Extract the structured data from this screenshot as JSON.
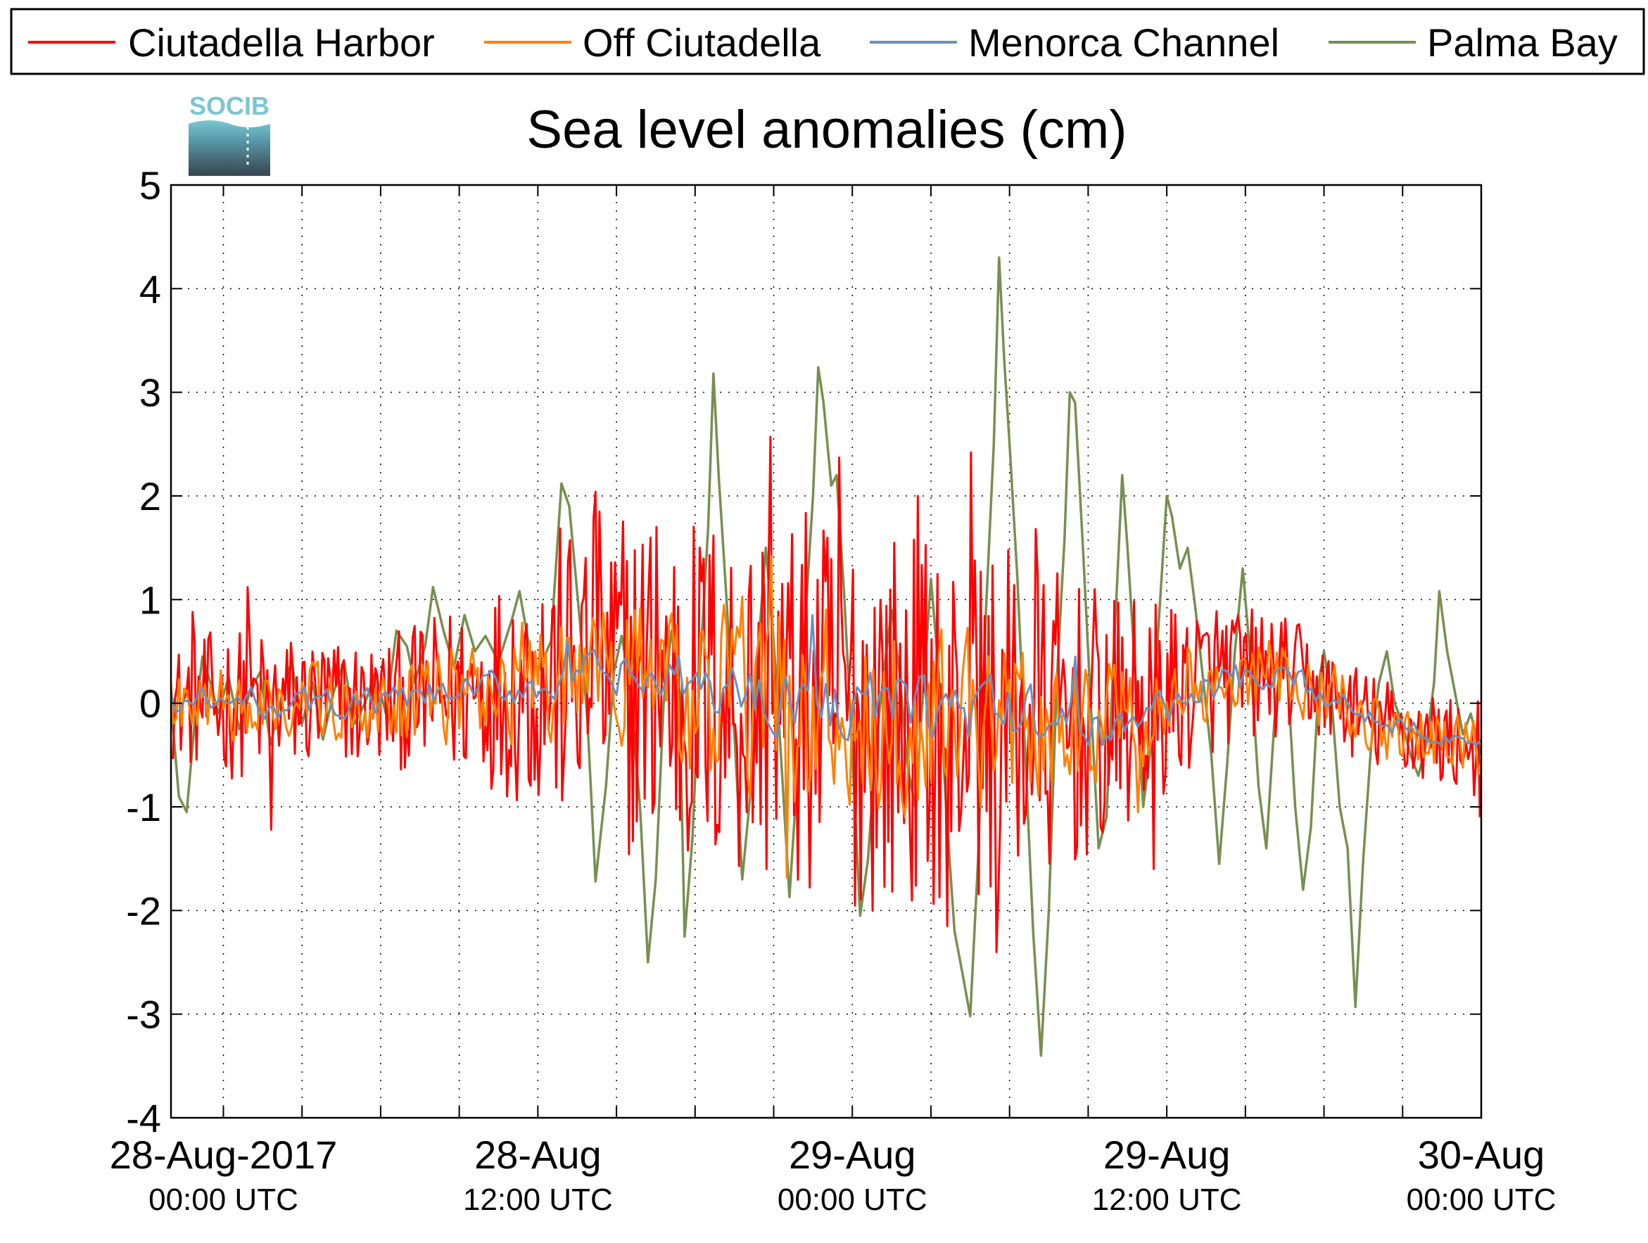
{
  "chart_data": {
    "type": "line",
    "title": "Sea level anomalies (cm)",
    "logo": "SOCIB",
    "ylim": [
      -4,
      5
    ],
    "yticks": [
      -4,
      -3,
      -2,
      -1,
      0,
      1,
      2,
      3,
      4,
      5
    ],
    "ytick_labels": [
      "-4",
      "-3",
      "-2",
      "-1",
      "0",
      "1",
      "2",
      "3",
      "4",
      "5"
    ],
    "xlim": [
      "2017-08-28 00:00",
      "2017-08-30 00:00"
    ],
    "x_range_hours": [
      -2,
      48
    ],
    "xticks_hours": [
      0,
      3,
      6,
      9,
      12,
      15,
      18,
      21,
      24,
      27,
      30,
      33,
      36,
      39,
      42,
      45,
      48
    ],
    "xtick_labels": [
      {
        "hour": 0,
        "line1": "28-Aug-2017",
        "line2": "00:00 UTC"
      },
      {
        "hour": 12,
        "line1": "28-Aug",
        "line2": "12:00 UTC"
      },
      {
        "hour": 24,
        "line1": "29-Aug",
        "line2": "00:00 UTC"
      },
      {
        "hour": 36,
        "line1": "29-Aug",
        "line2": "12:00 UTC"
      },
      {
        "hour": 48,
        "line1": "30-Aug",
        "line2": "00:00 UTC"
      }
    ],
    "grid": true,
    "legend_position": "top",
    "series": [
      {
        "name": "Ciutadella Harbor",
        "color": "#ff0000",
        "envelope": [
          [
            -2,
            0.4
          ],
          [
            0,
            0.55
          ],
          [
            6,
            0.45
          ],
          [
            10,
            0.7
          ],
          [
            13,
            1.1
          ],
          [
            16,
            1.3
          ],
          [
            20,
            1.35
          ],
          [
            24,
            1.45
          ],
          [
            26,
            1.35
          ],
          [
            30,
            1.25
          ],
          [
            33,
            1.0
          ],
          [
            37,
            0.6
          ],
          [
            42,
            0.35
          ],
          [
            48,
            0.35
          ]
        ],
        "trend": [
          [
            -2,
            0.0
          ],
          [
            6,
            0.0
          ],
          [
            10,
            0.15
          ],
          [
            14,
            0.3
          ],
          [
            18,
            0.1
          ],
          [
            24,
            -0.1
          ],
          [
            30,
            -0.2
          ],
          [
            34,
            -0.2
          ],
          [
            38,
            0.3
          ],
          [
            41,
            0.25
          ],
          [
            44,
            -0.2
          ],
          [
            48,
            -0.45
          ]
        ],
        "peaks": [
          [
            -1.2,
            0.88
          ],
          [
            0.9,
            1.12
          ],
          [
            1.8,
            -1.22
          ],
          [
            14.2,
            2.04
          ],
          [
            16.5,
            1.7
          ],
          [
            20.9,
            2.57
          ],
          [
            23.5,
            2.37
          ],
          [
            26.5,
            2.0
          ],
          [
            28.5,
            2.42
          ],
          [
            29.5,
            -2.4
          ],
          [
            31.0,
            1.68
          ],
          [
            27.6,
            -2.15
          ],
          [
            35.5,
            -1.6
          ],
          [
            48,
            -1.1
          ]
        ]
      },
      {
        "name": "Off Ciutadella",
        "color": "#ff8000",
        "envelope": [
          [
            -2,
            0.25
          ],
          [
            0,
            0.3
          ],
          [
            6,
            0.35
          ],
          [
            12,
            0.55
          ],
          [
            18,
            0.75
          ],
          [
            22,
            0.9
          ],
          [
            26,
            0.8
          ],
          [
            30,
            0.7
          ],
          [
            34,
            0.5
          ],
          [
            38,
            0.35
          ],
          [
            48,
            0.25
          ]
        ],
        "trend": [
          [
            -2,
            0.0
          ],
          [
            6,
            0.0
          ],
          [
            10,
            0.15
          ],
          [
            14,
            0.3
          ],
          [
            18,
            0.1
          ],
          [
            24,
            -0.1
          ],
          [
            30,
            -0.2
          ],
          [
            34,
            -0.2
          ],
          [
            38,
            0.3
          ],
          [
            41,
            0.25
          ],
          [
            44,
            -0.2
          ],
          [
            48,
            -0.45
          ]
        ],
        "peaks": [
          [
            20.9,
            1.42
          ],
          [
            21.5,
            -1.68
          ],
          [
            26.0,
            -1.1
          ],
          [
            34.9,
            -1.05
          ]
        ]
      },
      {
        "name": "Menorca Channel",
        "color": "#6b8fbf",
        "envelope": [
          [
            -2,
            0.15
          ],
          [
            6,
            0.15
          ],
          [
            12,
            0.2
          ],
          [
            18,
            0.3
          ],
          [
            24,
            0.35
          ],
          [
            30,
            0.3
          ],
          [
            36,
            0.2
          ],
          [
            42,
            0.12
          ],
          [
            48,
            0.1
          ]
        ],
        "trend": [
          [
            -2,
            0.0
          ],
          [
            6,
            0.0
          ],
          [
            10,
            0.12
          ],
          [
            14,
            0.25
          ],
          [
            18,
            0.15
          ],
          [
            24,
            0.0
          ],
          [
            30,
            -0.1
          ],
          [
            34,
            -0.25
          ],
          [
            38,
            0.2
          ],
          [
            41,
            0.2
          ],
          [
            44,
            -0.15
          ],
          [
            48,
            -0.35
          ]
        ],
        "peaks": [
          [
            22.4,
            0.85
          ],
          [
            13.1,
            0.6
          ],
          [
            32.5,
            0.45
          ]
        ]
      },
      {
        "name": "Palma Bay",
        "color": "#778f50",
        "points": [
          [
            -2,
            0.0
          ],
          [
            -1.7,
            -0.9
          ],
          [
            -1.4,
            -1.05
          ],
          [
            -1.1,
            -0.2
          ],
          [
            -0.8,
            0.45
          ],
          [
            -0.5,
            0.2
          ],
          [
            -0.2,
            -0.1
          ],
          [
            0.2,
            0.25
          ],
          [
            0.6,
            -0.25
          ],
          [
            1.0,
            0.1
          ],
          [
            1.4,
            0.3
          ],
          [
            1.8,
            -0.4
          ],
          [
            2.2,
            0.05
          ],
          [
            2.6,
            0.4
          ],
          [
            3.0,
            -0.2
          ],
          [
            3.4,
            0.2
          ],
          [
            3.8,
            -0.35
          ],
          [
            4.2,
            0.1
          ],
          [
            4.6,
            0.4
          ],
          [
            5.0,
            -0.2
          ],
          [
            5.4,
            0.0
          ],
          [
            5.8,
            0.3
          ],
          [
            6.2,
            -0.1
          ],
          [
            6.6,
            0.7
          ],
          [
            7.0,
            0.55
          ],
          [
            7.3,
            0.2
          ],
          [
            7.7,
            0.55
          ],
          [
            8.0,
            1.12
          ],
          [
            8.4,
            0.7
          ],
          [
            8.8,
            0.35
          ],
          [
            9.2,
            0.85
          ],
          [
            9.6,
            0.5
          ],
          [
            10.0,
            0.65
          ],
          [
            10.5,
            0.4
          ],
          [
            11.0,
            0.8
          ],
          [
            11.3,
            1.08
          ],
          [
            11.7,
            0.5
          ],
          [
            12.0,
            0.3
          ],
          [
            12.5,
            0.6
          ],
          [
            12.9,
            2.12
          ],
          [
            13.2,
            1.9
          ],
          [
            13.6,
            0.8
          ],
          [
            13.9,
            -0.2
          ],
          [
            14.2,
            -1.72
          ],
          [
            14.6,
            -0.8
          ],
          [
            14.9,
            0.3
          ],
          [
            15.2,
            0.65
          ],
          [
            15.5,
            0.2
          ],
          [
            15.9,
            -1.0
          ],
          [
            16.2,
            -2.5
          ],
          [
            16.5,
            -1.7
          ],
          [
            16.8,
            0.0
          ],
          [
            17.1,
            0.7
          ],
          [
            17.4,
            0.1
          ],
          [
            17.6,
            -2.25
          ],
          [
            17.9,
            -1.3
          ],
          [
            18.2,
            0.4
          ],
          [
            18.5,
            1.7
          ],
          [
            18.7,
            3.18
          ],
          [
            18.9,
            2.2
          ],
          [
            19.2,
            1.0
          ],
          [
            19.5,
            -0.3
          ],
          [
            19.8,
            -1.7
          ],
          [
            20.1,
            -0.9
          ],
          [
            20.4,
            0.5
          ],
          [
            20.7,
            1.5
          ],
          [
            21.0,
            0.6
          ],
          [
            21.3,
            -0.6
          ],
          [
            21.6,
            -1.87
          ],
          [
            21.9,
            -0.7
          ],
          [
            22.2,
            0.8
          ],
          [
            22.5,
            2.0
          ],
          [
            22.7,
            3.24
          ],
          [
            22.9,
            2.9
          ],
          [
            23.2,
            2.1
          ],
          [
            23.4,
            2.2
          ],
          [
            23.7,
            1.0
          ],
          [
            24.0,
            -0.5
          ],
          [
            24.3,
            -2.05
          ],
          [
            24.6,
            -1.5
          ],
          [
            24.9,
            -0.4
          ],
          [
            25.2,
            0.3
          ],
          [
            25.5,
            0.9
          ],
          [
            25.8,
            0.3
          ],
          [
            26.1,
            -0.6
          ],
          [
            26.4,
            -1.0
          ],
          [
            26.7,
            0.1
          ],
          [
            27.0,
            1.2
          ],
          [
            27.3,
            0.3
          ],
          [
            27.6,
            -1.1
          ],
          [
            27.9,
            -2.2
          ],
          [
            28.2,
            -2.6
          ],
          [
            28.5,
            -3.02
          ],
          [
            28.8,
            -1.5
          ],
          [
            29.1,
            0.9
          ],
          [
            29.4,
            2.5
          ],
          [
            29.6,
            4.3
          ],
          [
            29.8,
            3.3
          ],
          [
            30.0,
            2.5
          ],
          [
            30.3,
            1.2
          ],
          [
            30.6,
            -0.5
          ],
          [
            30.9,
            -2.2
          ],
          [
            31.2,
            -3.4
          ],
          [
            31.5,
            -2.0
          ],
          [
            31.8,
            0.2
          ],
          [
            32.1,
            1.6
          ],
          [
            32.3,
            3.0
          ],
          [
            32.5,
            2.9
          ],
          [
            32.8,
            1.5
          ],
          [
            33.1,
            0.0
          ],
          [
            33.4,
            -1.4
          ],
          [
            33.7,
            -1.1
          ],
          [
            34.0,
            0.6
          ],
          [
            34.3,
            2.2
          ],
          [
            34.5,
            1.5
          ],
          [
            34.8,
            0.3
          ],
          [
            35.1,
            -1.0
          ],
          [
            35.4,
            -0.4
          ],
          [
            35.7,
            0.8
          ],
          [
            36.0,
            2.0
          ],
          [
            36.2,
            1.8
          ],
          [
            36.5,
            1.3
          ],
          [
            36.8,
            1.5
          ],
          [
            37.1,
            0.9
          ],
          [
            37.4,
            0.2
          ],
          [
            37.7,
            -0.5
          ],
          [
            38.0,
            -1.55
          ],
          [
            38.3,
            -0.6
          ],
          [
            38.6,
            0.5
          ],
          [
            38.9,
            1.3
          ],
          [
            39.2,
            0.4
          ],
          [
            39.5,
            -0.8
          ],
          [
            39.8,
            -1.4
          ],
          [
            40.1,
            -0.2
          ],
          [
            40.4,
            0.6
          ],
          [
            40.6,
            0.3
          ],
          [
            40.9,
            -1.0
          ],
          [
            41.2,
            -1.8
          ],
          [
            41.5,
            -1.2
          ],
          [
            41.8,
            0.2
          ],
          [
            42.0,
            0.5
          ],
          [
            42.3,
            0.0
          ],
          [
            42.6,
            -1.0
          ],
          [
            42.9,
            -1.4
          ],
          [
            43.2,
            -2.93
          ],
          [
            43.5,
            -1.5
          ],
          [
            43.8,
            -0.4
          ],
          [
            44.1,
            0.2
          ],
          [
            44.4,
            0.5
          ],
          [
            44.7,
            0.0
          ],
          [
            45.0,
            -0.2
          ],
          [
            45.3,
            -0.5
          ],
          [
            45.6,
            -0.7
          ],
          [
            45.9,
            -0.4
          ],
          [
            46.2,
            0.2
          ],
          [
            46.4,
            1.08
          ],
          [
            46.7,
            0.5
          ],
          [
            47.0,
            0.1
          ],
          [
            47.3,
            -0.3
          ],
          [
            47.6,
            -0.1
          ],
          [
            48.0,
            -0.5
          ]
        ]
      }
    ]
  }
}
